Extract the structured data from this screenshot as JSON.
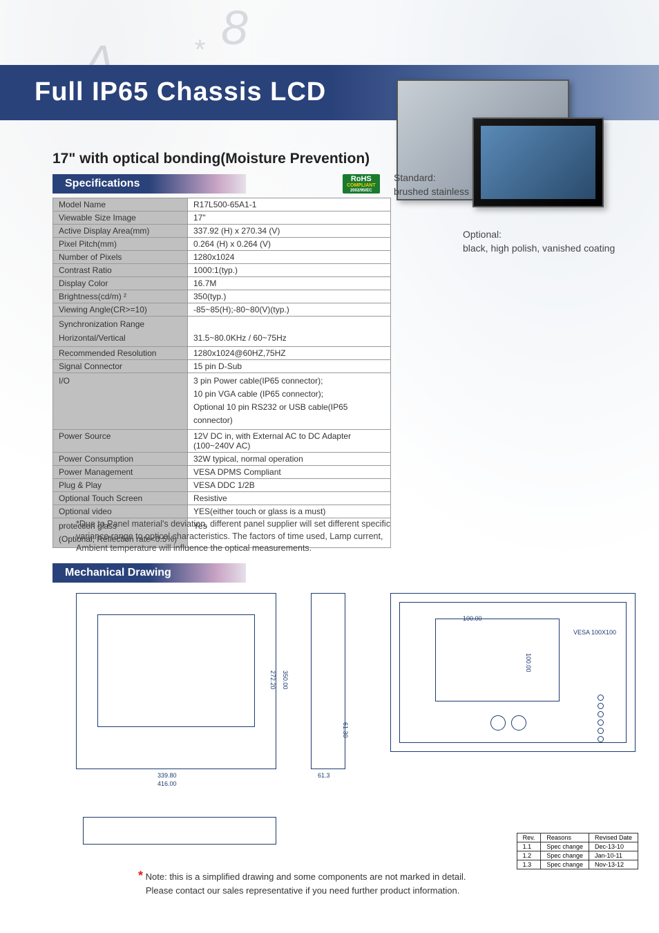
{
  "banner": {
    "title": "Full IP65 Chassis LCD"
  },
  "subtitle": "17\" with optical bonding(Moisture Prevention)",
  "sections": {
    "specs": "Specifications",
    "mech": "Mechanical Drawing"
  },
  "rohs": {
    "main": "RoHS",
    "sub": "COMPLIANT",
    "code": "2002/95/EC"
  },
  "captions": {
    "standard_label": "Standard:",
    "standard_text": "brushed stainless",
    "optional_label": "Optional:",
    "optional_text": "black, high polish, vanished coating"
  },
  "spec_rows": [
    {
      "label": "Model Name",
      "value": "R17L500-65A1-1"
    },
    {
      "label": "Viewable Size Image",
      "value": "17\""
    },
    {
      "label": "Active Display Area(mm)",
      "value": "337.92 (H) x 270.34 (V)"
    },
    {
      "label": "Pixel Pitch(mm)",
      "value": "0.264 (H) x 0.264 (V)"
    },
    {
      "label": "Number of Pixels",
      "value": "1280x1024"
    },
    {
      "label": "Contrast Ratio",
      "value": "1000:1(typ.)"
    },
    {
      "label": "Display Color",
      "value": "16.7M"
    },
    {
      "label": "Brightness(cd/m) ²",
      "value": "350(typ.)"
    },
    {
      "label": "Viewing Angle(CR>=10)",
      "value": "-85~85(H);-80~80(V)(typ.)"
    },
    {
      "label": "Synchronization Range\nHorizontal/Vertical",
      "value": "\n31.5~80.0KHz / 60~75Hz",
      "multiline": true
    },
    {
      "label": "Recommended Resolution",
      "value": "1280x1024@60HZ,75HZ"
    },
    {
      "label": "Signal Connector",
      "value": "15 pin D-Sub"
    },
    {
      "label": "I/O",
      "value": "3 pin Power cable(IP65 connector);\n10 pin VGA cable (IP65 connector);\nOptional 10 pin RS232 or USB cable(IP65 connector)",
      "multiline": true
    },
    {
      "label": "Power Source",
      "value": "12V DC in, with External AC to DC Adapter (100~240V AC)"
    },
    {
      "label": "Power Consumption",
      "value": "32W typical, normal operation"
    },
    {
      "label": "Power Management",
      "value": "VESA DPMS Compliant"
    },
    {
      "label": "Plug & Play",
      "value": "VESA DDC 1/2B"
    },
    {
      "label": "Optional Touch Screen",
      "value": "Resistive"
    },
    {
      "label": "Optional video",
      "value": "YES(either touch or glass is a must)"
    },
    {
      "label": "protection glass\n(Optional, Reflection rate<0.5%)",
      "value": "Yes",
      "multiline": true
    }
  ],
  "footnote": "*Due to Panel material's deviation, different panel supplier will set different specific\n variance range to optical characteristics. The factors of time used, Lamp current,\n Ambient temperature will influence the optical measurements.",
  "drawing": {
    "w1": "339.80",
    "w2": "416.00",
    "h1": "272.20",
    "h2": "350.00",
    "depth": "61.3",
    "vesa": "VESA 100X100",
    "vesa_h": "100.00",
    "vesa_v": "100.00",
    "side": "61.30"
  },
  "rev_table": {
    "headers": [
      "Rev.",
      "Reasons",
      "Revised Date"
    ],
    "rows": [
      [
        "1.1",
        "Spec change",
        "Dec-13-10"
      ],
      [
        "1.2",
        "Spec change",
        "Jan-10-11"
      ],
      [
        "1.3",
        "Spec change",
        "Nov-13-12"
      ]
    ]
  },
  "note": {
    "line1": "Note: this is a simplified drawing and some components are not marked in detail.",
    "line2": "Please contact our sales representative if you need further product information."
  },
  "watermark_chars": [
    "A",
    "8",
    "*"
  ]
}
